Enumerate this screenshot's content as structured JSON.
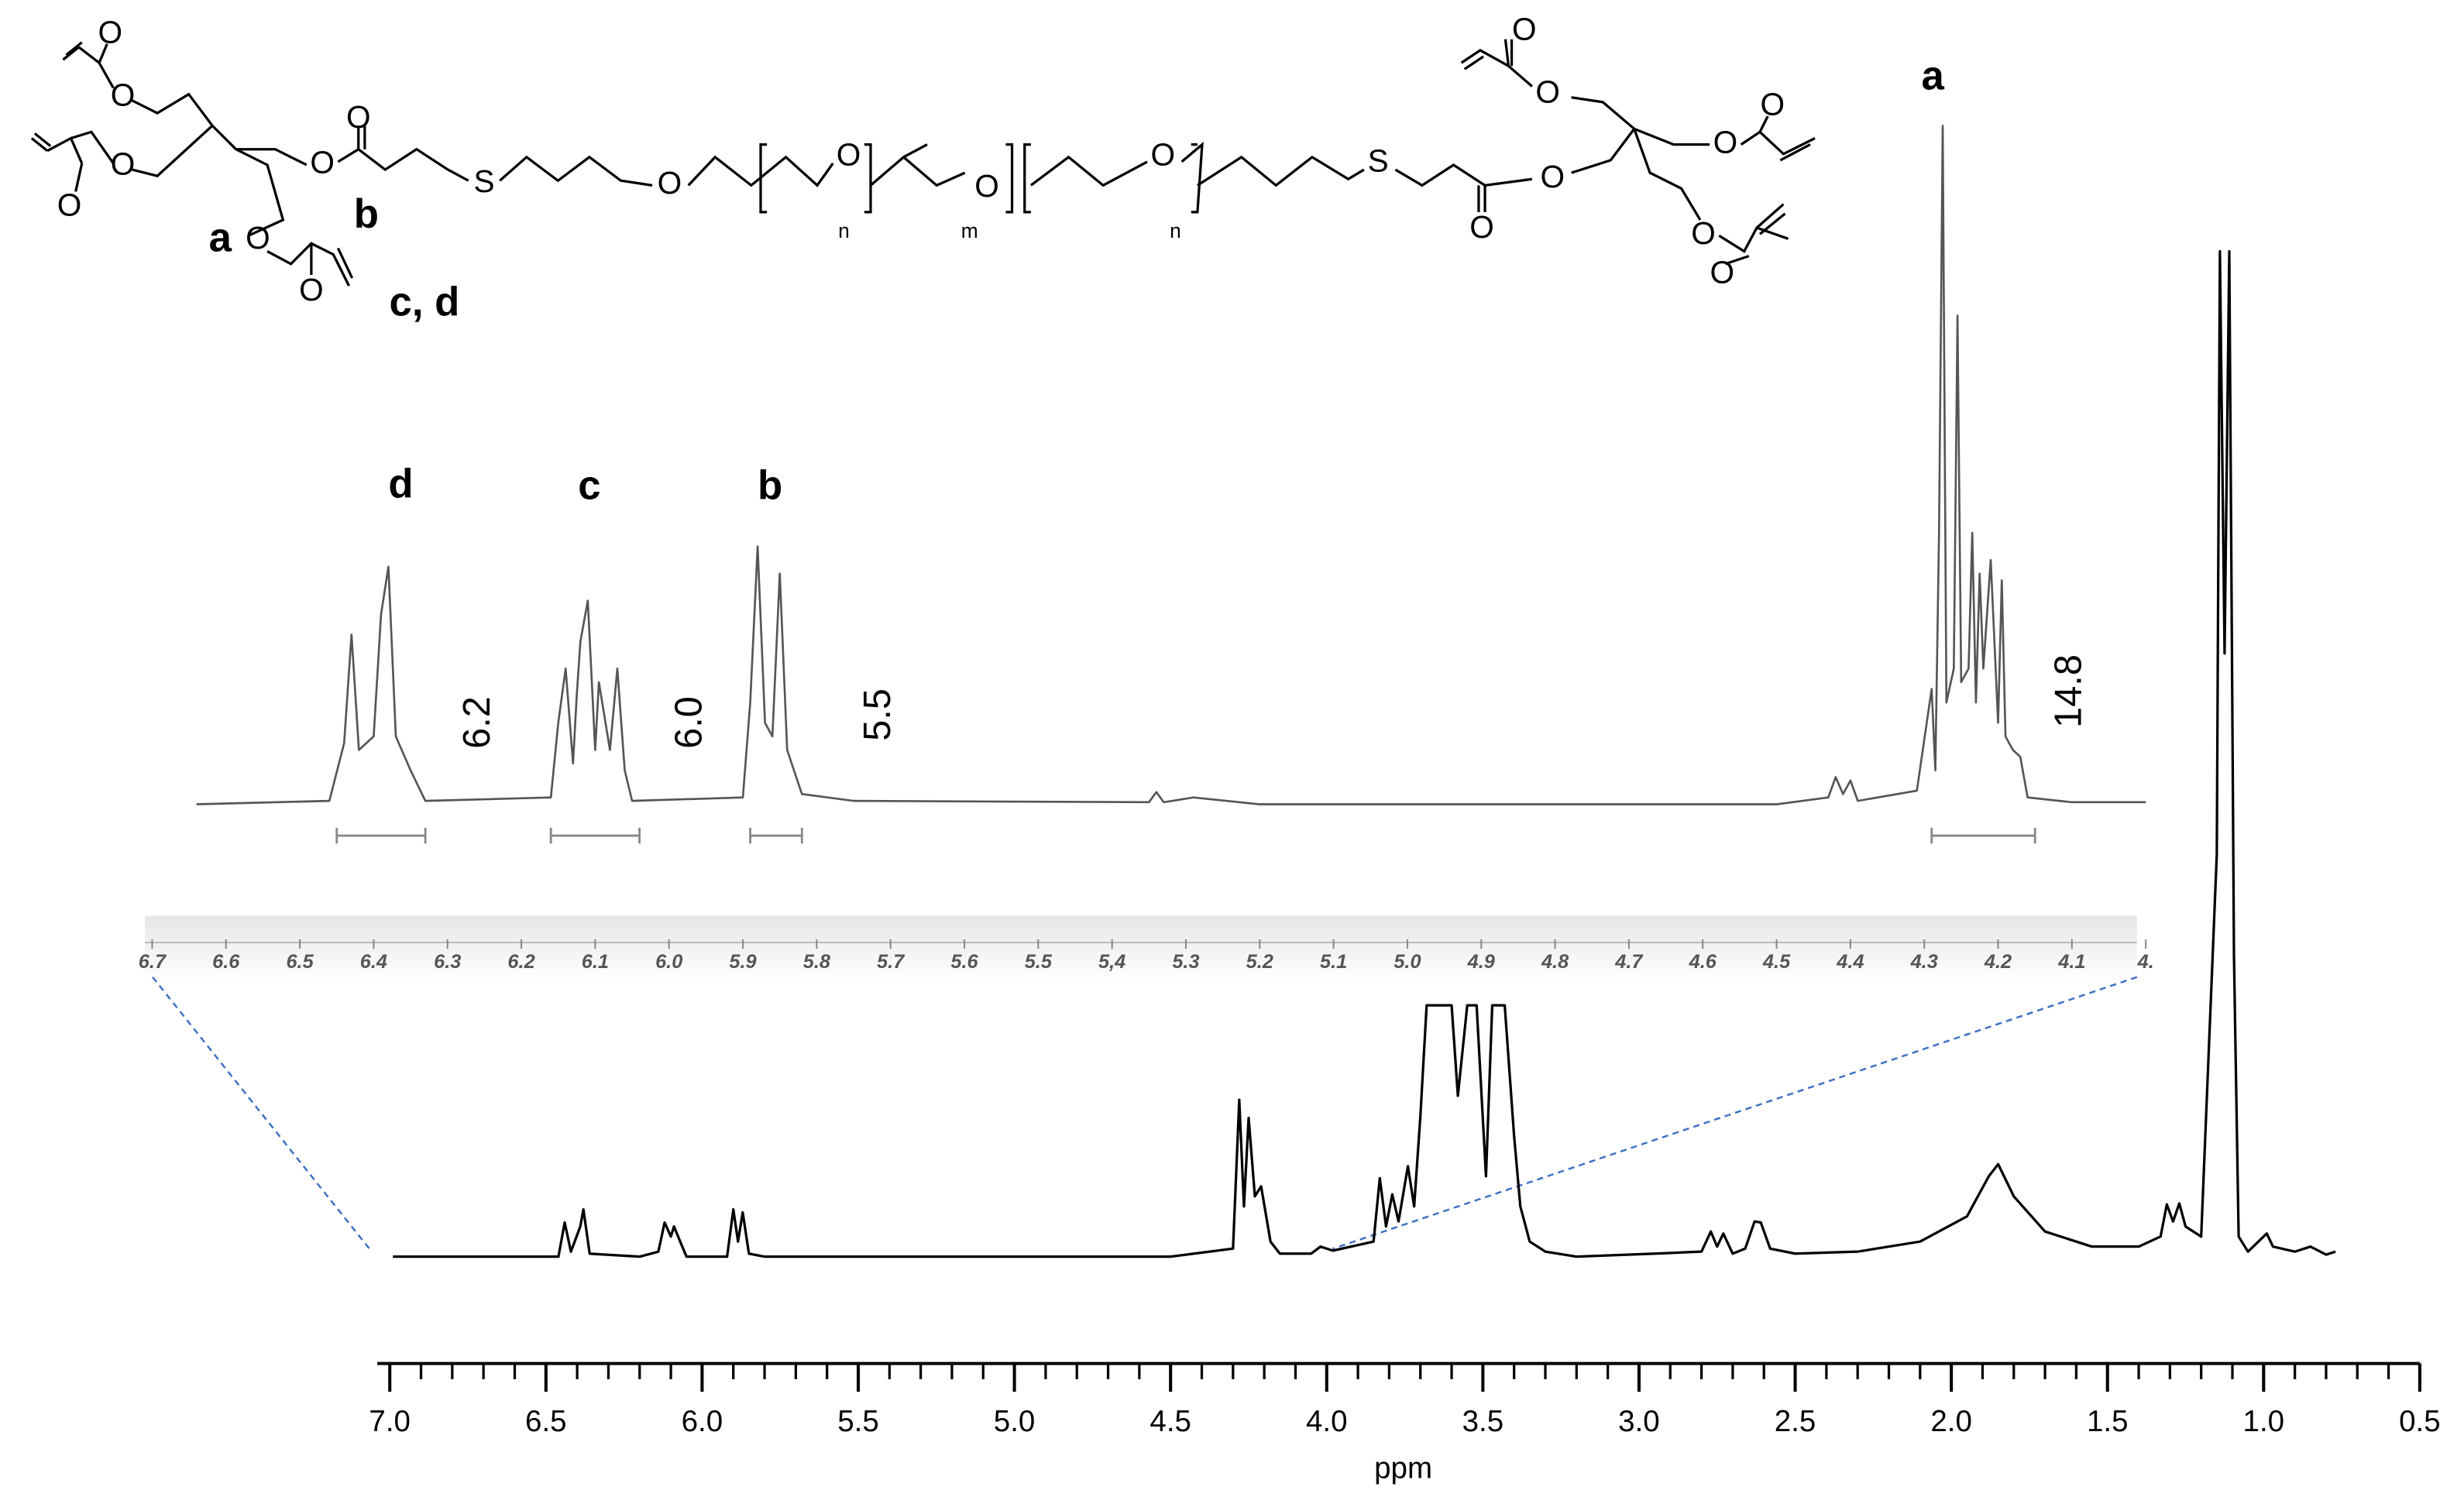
{
  "chart_data": [
    {
      "type": "line",
      "x_label": "ppm",
      "xlim": [
        7.04,
        0.5
      ],
      "ylim": [
        0,
        100
      ],
      "xticks": [
        {
          "value": 7.0,
          "label": "7.0"
        },
        6.5,
        {
          "value": 6.0,
          "label": "6.0"
        },
        5.5,
        {
          "value": 5.0,
          "label": "5.0"
        },
        4.5,
        {
          "value": 4.0,
          "label": "4.0"
        },
        3.5,
        {
          "value": 3.0,
          "label": "3.0"
        },
        2.5,
        {
          "value": 2.0,
          "label": "2.0"
        },
        1.5,
        {
          "value": 1.0,
          "label": "1.0"
        },
        0.5
      ],
      "x_minor_ticks": [
        6.9,
        6.8,
        6.7,
        6.6,
        6.4,
        6.3,
        6.2,
        6.1,
        5.9,
        5.8,
        5.7,
        5.6,
        5.4,
        5.3,
        5.2,
        5.1,
        4.9,
        4.8,
        4.7,
        4.6,
        4.4,
        4.3,
        4.2,
        4.1,
        3.9,
        3.8,
        3.7,
        3.6,
        3.4,
        3.3,
        3.2,
        3.1,
        2.9,
        2.8,
        2.7,
        2.6,
        2.4,
        2.3,
        2.2,
        2.1,
        1.9,
        1.8,
        1.7,
        1.6,
        1.4,
        1.3,
        1.2,
        1.1,
        0.9,
        0.8,
        0.7,
        0.6
      ],
      "x": [
        6.99,
        6.6,
        6.46,
        6.44,
        6.42,
        6.39,
        6.38,
        6.36,
        6.2,
        6.14,
        6.12,
        6.1,
        6.09,
        6.07,
        6.05,
        5.92,
        5.9,
        5.885,
        5.87,
        5.85,
        5.8,
        4.5,
        4.3,
        4.28,
        4.265,
        4.25,
        4.23,
        4.21,
        4.18,
        4.15,
        4.05,
        4.02,
        3.98,
        3.85,
        3.83,
        3.81,
        3.79,
        3.77,
        3.74,
        3.72,
        3.7,
        3.68,
        3.65,
        3.6,
        3.58,
        3.55,
        3.52,
        3.49,
        3.47,
        3.43,
        3.4,
        3.38,
        3.35,
        3.3,
        3.2,
        2.95,
        2.8,
        2.77,
        2.75,
        2.73,
        2.7,
        2.66,
        2.63,
        2.61,
        2.58,
        2.5,
        2.3,
        2.1,
        1.95,
        1.88,
        1.85,
        1.8,
        1.7,
        1.55,
        1.4,
        1.33,
        1.31,
        1.29,
        1.27,
        1.25,
        1.2,
        1.15,
        1.14,
        1.125,
        1.11,
        1.095,
        1.08,
        1.05,
        1.0,
        0.99,
        0.97,
        0.9,
        0.85,
        0.8,
        0.77
      ],
      "series": [
        {
          "color": "#000000",
          "values": [
            0,
            0,
            0,
            3.4,
            0.5,
            3.0,
            4.7,
            0.3,
            0,
            0.5,
            3.4,
            2,
            3.0,
            1.5,
            0,
            0,
            4.7,
            1.5,
            4.4,
            0.3,
            0,
            0,
            0.8,
            15.6,
            5,
            13.8,
            6,
            7,
            1.5,
            0.3,
            0.3,
            1,
            0.6,
            1.5,
            7.8,
            3,
            6.2,
            3.5,
            9,
            5,
            14,
            25,
            25,
            25,
            16,
            25,
            25,
            8,
            25,
            25,
            12,
            5,
            1.5,
            0.5,
            0,
            0.3,
            0.5,
            2.5,
            1,
            2.3,
            0.3,
            0.8,
            3.5,
            3.4,
            0.8,
            0.3,
            0.5,
            1.5,
            4,
            8,
            9.2,
            6,
            2.5,
            1,
            1,
            2,
            5.2,
            3.5,
            5.3,
            3,
            2,
            40,
            100,
            60,
            100,
            30,
            2,
            0.5,
            2,
            2.3,
            1,
            0.5,
            1,
            0.2,
            0.5
          ]
        }
      ]
    },
    {
      "type": "line",
      "xlim": [
        6.71,
        3.98
      ],
      "ylim": [
        0,
        100
      ],
      "xticks": [
        6.7,
        6.6,
        6.5,
        6.4,
        6.3,
        6.2,
        6.1,
        {
          "value": 6.0,
          "label": "6.0"
        },
        5.9,
        5.8,
        5.7,
        5.6,
        5.5,
        {
          "value": 5.4,
          "label": "5,4"
        },
        5.3,
        5.2,
        5.1,
        {
          "value": 5.0,
          "label": "5.0"
        },
        4.9,
        4.8,
        4.7,
        4.6,
        4.5,
        4.4,
        4.3,
        4.2,
        4.1,
        {
          "value": 4.0,
          "label": "4."
        }
      ],
      "x": [
        6.64,
        6.46,
        6.44,
        6.43,
        6.42,
        6.4,
        6.39,
        6.38,
        6.37,
        6.35,
        6.33,
        6.16,
        6.15,
        6.14,
        6.13,
        6.125,
        6.12,
        6.11,
        6.1,
        6.095,
        6.08,
        6.07,
        6.06,
        6.05,
        5.9,
        5.89,
        5.88,
        5.87,
        5.86,
        5.85,
        5.84,
        5.82,
        5.75,
        5.35,
        5.34,
        5.33,
        5.29,
        5.2,
        4.5,
        4.43,
        4.42,
        4.41,
        4.4,
        4.39,
        4.31,
        4.29,
        4.285,
        4.28,
        4.275,
        4.27,
        4.26,
        4.255,
        4.25,
        4.24,
        4.235,
        4.23,
        4.225,
        4.22,
        4.21,
        4.2,
        4.195,
        4.19,
        4.18,
        4.17,
        4.16,
        4.1,
        4.0
      ],
      "series": [
        {
          "color": "#555555",
          "values": [
            0,
            0.5,
            9,
            25,
            8,
            10,
            28,
            35,
            10,
            5,
            0.5,
            1,
            12,
            20,
            6,
            16,
            24,
            30,
            8,
            18,
            8,
            20,
            5,
            0.5,
            1,
            15,
            38,
            12,
            10,
            34,
            8,
            1.5,
            0.5,
            0.3,
            1.8,
            0.3,
            1,
            0,
            0,
            1,
            4,
            1.5,
            3.5,
            0.5,
            2,
            17,
            5,
            40,
            100,
            15,
            20,
            72,
            18,
            20,
            40,
            15,
            34,
            20,
            36,
            12,
            33,
            10,
            8,
            7,
            1,
            0.3,
            0.3
          ]
        }
      ],
      "peak_labels": [
        "d",
        "c",
        "b",
        "a"
      ],
      "integrals": [
        {
          "range": [
            6.45,
            6.33
          ],
          "value": 6.2,
          "label": "6.2"
        },
        {
          "range": [
            6.16,
            6.04
          ],
          "value": 6,
          "label": "6.0"
        },
        {
          "range": [
            5.89,
            5.82
          ],
          "value": 5.5,
          "label": "5.5"
        },
        {
          "range": [
            4.29,
            4.15
          ],
          "value": 14.8,
          "label": "14.8"
        }
      ]
    }
  ],
  "structure": {
    "atoms": [
      "O",
      "O",
      "O",
      "O",
      "O",
      "O",
      "O",
      "O",
      "S",
      "O",
      "O",
      "O",
      "O",
      "S",
      "O",
      "O",
      "O",
      "O",
      "O",
      "O",
      "O",
      "O"
    ],
    "labels": [
      "a",
      "b",
      "c, d"
    ],
    "subscripts": [
      "n",
      "m",
      "n"
    ]
  }
}
